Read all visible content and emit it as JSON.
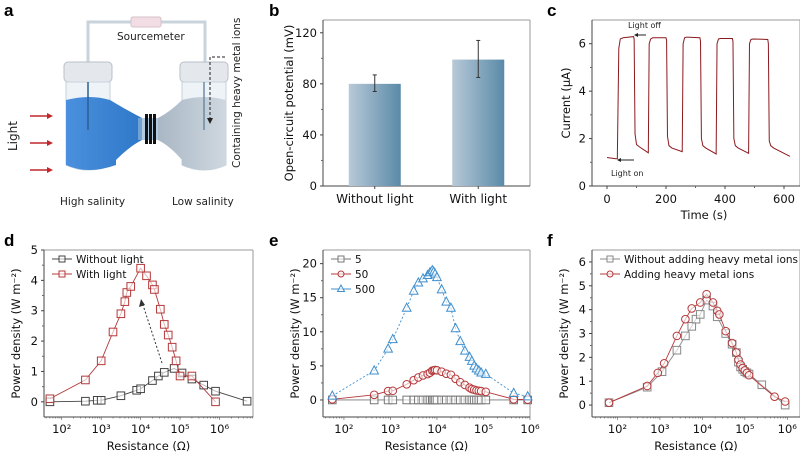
{
  "figure": {
    "panel_letters": [
      "a",
      "b",
      "c",
      "d",
      "e",
      "f"
    ]
  },
  "diagram": {
    "top_label": "Sourcemeter",
    "side_label": "Light",
    "left_label": "High salinity",
    "right_label": "Low salinity",
    "vertical_label": "Containing heavy metal ions",
    "colors": {
      "arrow": "#c0282d",
      "liquid_high": "#3b86d6",
      "liquid_low": "#b9c5d0"
    }
  },
  "chart_data": [
    {
      "panel": "b",
      "type": "bar",
      "title": "",
      "xlabel": "",
      "ylabel": "Open-circuit potential (mV)",
      "categories": [
        "Without light",
        "With light"
      ],
      "values": [
        80,
        99
      ],
      "errors": [
        [
          74,
          87
        ],
        [
          85,
          114
        ]
      ],
      "ylim": [
        0,
        130
      ],
      "yticks": [
        0,
        40,
        80,
        120
      ],
      "ytick_labels": [
        "0",
        "40",
        "80",
        "120"
      ],
      "grid": false,
      "colors": {
        "bar_light": "#b8c9d8",
        "bar_dark": "#5a8aa8"
      }
    },
    {
      "panel": "c",
      "type": "line",
      "title": "",
      "xlabel": "Time (s)",
      "ylabel": "Current (μA)",
      "xlim": [
        -50,
        650
      ],
      "ylim": [
        0,
        7
      ],
      "xticks": [
        0,
        200,
        400,
        600
      ],
      "xtick_labels": [
        "0",
        "200",
        "400",
        "600"
      ],
      "yticks": [
        0,
        2,
        4,
        6
      ],
      "ytick_labels": [
        "0",
        "2",
        "4",
        "6"
      ],
      "annotations": [
        {
          "text": "Light off",
          "x": 95,
          "y": 6.3
        },
        {
          "text": "Light on",
          "x": 35,
          "y": 1.15
        }
      ],
      "series": [
        {
          "name": "Current",
          "color": "#8b1a1f",
          "x": [
            0,
            30,
            35,
            40,
            45,
            55,
            90,
            92,
            95,
            100,
            110,
            140,
            143,
            148,
            155,
            200,
            202,
            205,
            210,
            220,
            255,
            258,
            263,
            270,
            315,
            317,
            320,
            325,
            335,
            370,
            373,
            378,
            385,
            425,
            427,
            430,
            435,
            445,
            480,
            483,
            488,
            495,
            545,
            547,
            550,
            555,
            565,
            620
          ],
          "y": [
            1.2,
            1.15,
            1.15,
            5.8,
            6.2,
            6.25,
            6.3,
            6.2,
            2.2,
            1.75,
            1.65,
            1.4,
            6.0,
            6.2,
            6.25,
            6.25,
            6.15,
            2.1,
            1.7,
            1.6,
            1.45,
            6.0,
            6.25,
            6.28,
            6.25,
            6.1,
            2.0,
            1.7,
            1.6,
            1.35,
            6.0,
            6.2,
            6.22,
            6.22,
            6.1,
            2.0,
            1.7,
            1.6,
            1.38,
            6.0,
            6.18,
            6.2,
            6.18,
            6.0,
            1.9,
            1.7,
            1.6,
            1.25
          ]
        }
      ]
    },
    {
      "panel": "d",
      "type": "line",
      "title": "",
      "xlabel": "Resistance (Ω)",
      "ylabel": "Power density (W m⁻²)",
      "xscale": "log",
      "xlim_log10": [
        1.55,
        6.85
      ],
      "ylim": [
        -0.5,
        5
      ],
      "xticks_log10": [
        2,
        3,
        4,
        5,
        6
      ],
      "xtick_labels": [
        "10²",
        "10³",
        "10⁴",
        "10⁵",
        "10⁶"
      ],
      "yticks": [
        0,
        1,
        2,
        3,
        4,
        5
      ],
      "ytick_labels": [
        "0",
        "1",
        "2",
        "3",
        "4",
        "5"
      ],
      "legend": "top-left",
      "annotation": "dashed arrow from Without light peak to With light peak",
      "series": [
        {
          "name": "Without light",
          "color": "#444444",
          "marker": "square",
          "x_log10": [
            1.7,
            2.6,
            2.9,
            3.0,
            3.5,
            3.9,
            4.0,
            4.3,
            4.45,
            4.6,
            4.85,
            5.05,
            5.3,
            5.6,
            5.9,
            6.7
          ],
          "y": [
            0.0,
            0.02,
            0.05,
            0.05,
            0.2,
            0.38,
            0.43,
            0.7,
            0.85,
            0.97,
            1.1,
            0.95,
            0.75,
            0.55,
            0.35,
            0.02
          ]
        },
        {
          "name": "With light",
          "color": "#b5383a",
          "marker": "square",
          "x_log10": [
            1.7,
            2.6,
            3.0,
            3.3,
            3.5,
            3.6,
            3.65,
            3.75,
            4.0,
            4.15,
            4.3,
            4.35,
            4.5,
            4.6,
            4.7,
            4.8,
            4.9,
            5.0,
            5.3,
            5.9
          ],
          "y": [
            0.1,
            0.72,
            1.35,
            2.3,
            2.9,
            3.3,
            3.6,
            3.8,
            4.4,
            4.15,
            3.85,
            3.7,
            3.05,
            2.55,
            2.2,
            1.8,
            1.35,
            0.85,
            0.85,
            0.0
          ]
        }
      ]
    },
    {
      "panel": "e",
      "type": "line",
      "title": "",
      "xlabel": "Resistance (Ω)",
      "ylabel": "Power density (W m⁻²)",
      "xscale": "log",
      "xlim_log10": [
        1.55,
        6.0
      ],
      "ylim": [
        -2.5,
        22
      ],
      "xticks_log10": [
        2,
        3,
        4,
        5,
        6
      ],
      "xtick_labels": [
        "10²",
        "10³",
        "10⁴",
        "10⁵",
        "10⁶"
      ],
      "yticks": [
        0,
        5,
        10,
        15,
        20
      ],
      "ytick_labels": [
        "0",
        "5",
        "10",
        "15",
        "20"
      ],
      "legend": "top-left",
      "series": [
        {
          "name": "5",
          "color": "#777777",
          "marker": "square",
          "x_log10": [
            1.75,
            2.65,
            2.95,
            3.05,
            3.35,
            3.5,
            3.6,
            3.7,
            3.8,
            3.85,
            3.9,
            3.93,
            3.96,
            4.0,
            4.1,
            4.2,
            4.3,
            4.4,
            4.5,
            4.6,
            4.7,
            4.75,
            4.8,
            4.85,
            4.9,
            4.95,
            5.05,
            5.65,
            5.95
          ],
          "y": [
            0,
            0,
            0,
            0,
            0,
            0,
            0,
            0,
            0,
            0,
            0,
            0,
            0,
            0,
            0,
            0,
            0,
            0,
            0,
            0,
            0,
            0,
            0,
            0,
            0,
            0,
            0,
            0,
            0
          ]
        },
        {
          "name": "50",
          "color": "#b5383a",
          "marker": "circle",
          "x_log10": [
            1.75,
            2.65,
            2.95,
            3.05,
            3.35,
            3.5,
            3.6,
            3.7,
            3.8,
            3.85,
            3.9,
            3.93,
            3.96,
            4.0,
            4.1,
            4.2,
            4.3,
            4.4,
            4.5,
            4.6,
            4.7,
            4.75,
            4.8,
            4.85,
            4.9,
            4.95,
            5.05,
            5.65,
            5.95
          ],
          "y": [
            0.1,
            0.75,
            1.3,
            1.35,
            2.3,
            2.9,
            3.3,
            3.6,
            3.8,
            4.0,
            4.3,
            4.35,
            4.4,
            4.35,
            4.15,
            3.85,
            3.7,
            3.1,
            2.6,
            2.2,
            1.8,
            1.6,
            1.5,
            1.4,
            1.35,
            1.3,
            1.2,
            0.1,
            0.05
          ]
        },
        {
          "name": "500",
          "color": "#3f8fcf",
          "marker": "triangle",
          "x_log10": [
            1.75,
            2.65,
            2.95,
            3.05,
            3.35,
            3.5,
            3.6,
            3.7,
            3.8,
            3.85,
            3.9,
            3.93,
            3.96,
            4.0,
            4.1,
            4.2,
            4.3,
            4.4,
            4.5,
            4.6,
            4.7,
            4.75,
            4.8,
            4.85,
            4.9,
            4.95,
            5.05,
            5.65,
            5.95
          ],
          "y": [
            0.6,
            4.3,
            7.5,
            8.9,
            13.5,
            16.0,
            17.2,
            17.8,
            18.3,
            18.7,
            19.0,
            18.8,
            18.5,
            18.0,
            16.2,
            14.4,
            13.5,
            10.5,
            8.6,
            7.2,
            6.3,
            5.7,
            5.0,
            4.6,
            4.3,
            4.0,
            3.8,
            1.0,
            0.5
          ]
        }
      ]
    },
    {
      "panel": "f",
      "type": "line",
      "title": "",
      "xlabel": "Resistance (Ω)",
      "ylabel": "Power density (W m⁻²)",
      "xscale": "log",
      "xlim_log10": [
        1.4,
        6.3
      ],
      "ylim": [
        -0.5,
        6.5
      ],
      "xticks_log10": [
        2,
        3,
        4,
        5,
        6
      ],
      "xtick_labels": [
        "10²",
        "10³",
        "10⁴",
        "10⁵",
        "10⁶"
      ],
      "yticks": [
        0,
        1,
        2,
        3,
        4,
        5,
        6
      ],
      "ytick_labels": [
        "0",
        "1",
        "2",
        "3",
        "4",
        "5",
        "6"
      ],
      "legend": "top-left",
      "series": [
        {
          "name": "Without adding heavy metal ions",
          "color": "#888888",
          "marker": "square",
          "x_log10": [
            1.8,
            2.7,
            3.05,
            3.4,
            3.6,
            3.75,
            3.85,
            3.95,
            4.1,
            4.25,
            4.35,
            4.55,
            4.7,
            4.8,
            4.85,
            4.9,
            4.95,
            5.0,
            5.05,
            5.1,
            5.4,
            5.95
          ],
          "y": [
            0.1,
            0.75,
            1.4,
            2.3,
            2.9,
            3.3,
            3.6,
            3.8,
            4.4,
            4.15,
            3.7,
            3.0,
            2.55,
            2.2,
            1.8,
            1.6,
            1.5,
            1.4,
            1.35,
            1.3,
            0.85,
            0.0
          ]
        },
        {
          "name": "Adding heavy metal ions",
          "color": "#b5383a",
          "marker": "circle",
          "x_log10": [
            1.8,
            2.7,
            2.95,
            3.1,
            3.4,
            3.6,
            3.75,
            3.95,
            4.1,
            4.25,
            4.35,
            4.4,
            4.55,
            4.7,
            4.8,
            4.85,
            4.9,
            4.95,
            5.0,
            5.05,
            5.1,
            5.7,
            5.95
          ],
          "y": [
            0.1,
            0.8,
            1.35,
            1.75,
            2.9,
            3.6,
            4.05,
            4.3,
            4.65,
            4.3,
            3.95,
            3.8,
            3.1,
            2.6,
            2.2,
            1.9,
            1.7,
            1.55,
            1.45,
            1.35,
            1.25,
            0.35,
            0.15
          ]
        }
      ]
    }
  ]
}
